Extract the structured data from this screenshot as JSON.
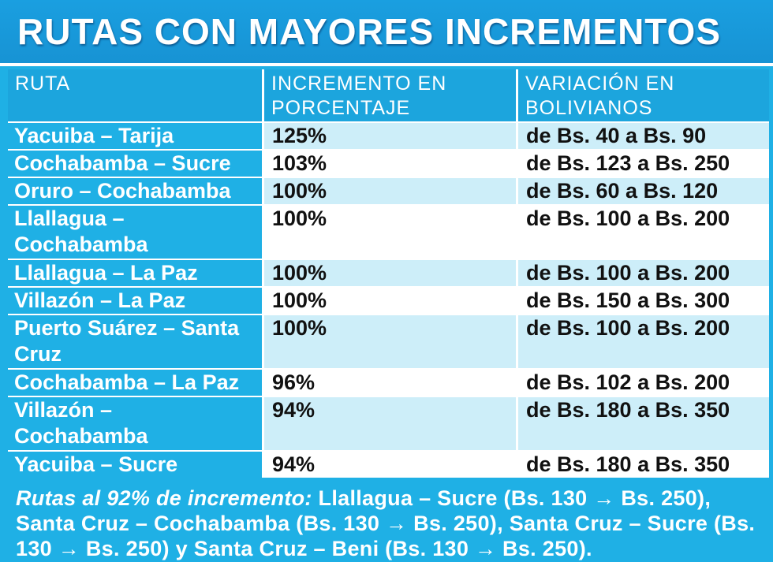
{
  "title": "RUTAS CON MAYORES INCREMENTOS",
  "table": {
    "headers": {
      "ruta": "RUTA",
      "porcentaje": "INCREMENTO EN PORCENTAJE",
      "variacion": "VARIACIÓN EN BOLIVIANOS"
    },
    "rows": [
      {
        "ruta": "Yacuiba – Tarija",
        "porcentaje": "125%",
        "variacion": "de Bs. 40 a Bs. 90"
      },
      {
        "ruta": "Cochabamba – Sucre",
        "porcentaje": "103%",
        "variacion": "de Bs. 123 a Bs. 250"
      },
      {
        "ruta": "Oruro – Cochabamba",
        "porcentaje": "100%",
        "variacion": "de Bs. 60 a Bs. 120"
      },
      {
        "ruta": "Llallagua – Cochabamba",
        "porcentaje": "100%",
        "variacion": "de Bs. 100 a Bs. 200"
      },
      {
        "ruta": "Llallagua – La Paz",
        "porcentaje": "100%",
        "variacion": "de Bs. 100 a Bs. 200"
      },
      {
        "ruta": "Villazón – La Paz",
        "porcentaje": "100%",
        "variacion": "de Bs. 150 a Bs. 300"
      },
      {
        "ruta": "Puerto Suárez – Santa Cruz",
        "porcentaje": "100%",
        "variacion": "de Bs. 100 a Bs. 200"
      },
      {
        "ruta": "Cochabamba – La Paz",
        "porcentaje": "96%",
        "variacion": "de Bs. 102 a Bs. 200"
      },
      {
        "ruta": "Villazón – Cochabamba",
        "porcentaje": "94%",
        "variacion": "de Bs. 180 a Bs. 350"
      },
      {
        "ruta": "Yacuiba – Sucre",
        "porcentaje": "94%",
        "variacion": "de Bs. 180 a Bs. 350"
      }
    ]
  },
  "footer": {
    "lead": "Rutas al 92% de incremento:",
    "text": "Llallagua – Sucre (Bs. 130 → Bs. 250), Santa Cruz – Cochabamba (Bs. 130 → Bs. 250), Santa Cruz – Sucre (Bs. 130 → Bs. 250) y Santa Cruz – Beni (Bs. 130 → Bs. 250)."
  },
  "colors": {
    "title_bg": "#1a9fe0",
    "cyan": "#1fb0e5",
    "header_bg": "#1ca5dd",
    "light_row": "#cdeef9",
    "text_dark": "#111111",
    "text_light": "#ffffff"
  }
}
